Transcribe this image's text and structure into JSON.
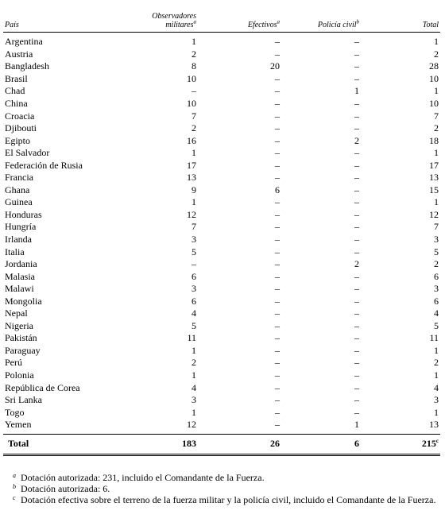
{
  "headers": {
    "country": "País",
    "observers": "Observadores militares",
    "observers_note": "a",
    "troops": "Efectivos",
    "troops_note": "a",
    "police": "Policía civil",
    "police_note": "b",
    "total": "Total"
  },
  "rows": [
    {
      "country": "Argentina",
      "observers": "1",
      "troops": "–",
      "police": "–",
      "total": "1"
    },
    {
      "country": "Austria",
      "observers": "2",
      "troops": "–",
      "police": "–",
      "total": "2"
    },
    {
      "country": "Bangladesh",
      "observers": "8",
      "troops": "20",
      "police": "–",
      "total": "28"
    },
    {
      "country": "Brasil",
      "observers": "10",
      "troops": "–",
      "police": "–",
      "total": "10"
    },
    {
      "country": "Chad",
      "observers": "–",
      "troops": "–",
      "police": "1",
      "total": "1"
    },
    {
      "country": "China",
      "observers": "10",
      "troops": "–",
      "police": "–",
      "total": "10"
    },
    {
      "country": "Croacia",
      "observers": "7",
      "troops": "–",
      "police": "–",
      "total": "7"
    },
    {
      "country": "Djibouti",
      "observers": "2",
      "troops": "–",
      "police": "–",
      "total": "2"
    },
    {
      "country": "Egipto",
      "observers": "16",
      "troops": "–",
      "police": "2",
      "total": "18"
    },
    {
      "country": "El Salvador",
      "observers": "1",
      "troops": "–",
      "police": "–",
      "total": "1"
    },
    {
      "country": "Federación de Rusia",
      "observers": "17",
      "troops": "–",
      "police": "–",
      "total": "17"
    },
    {
      "country": "Francia",
      "observers": "13",
      "troops": "–",
      "police": "–",
      "total": "13"
    },
    {
      "country": "Ghana",
      "observers": "9",
      "troops": "6",
      "police": "–",
      "total": "15"
    },
    {
      "country": "Guinea",
      "observers": "1",
      "troops": "–",
      "police": "–",
      "total": "1"
    },
    {
      "country": "Honduras",
      "observers": "12",
      "troops": "–",
      "police": "–",
      "total": "12"
    },
    {
      "country": "Hungría",
      "observers": "7",
      "troops": "–",
      "police": "–",
      "total": "7"
    },
    {
      "country": "Irlanda",
      "observers": "3",
      "troops": "–",
      "police": "–",
      "total": "3"
    },
    {
      "country": "Italia",
      "observers": "5",
      "troops": "–",
      "police": "–",
      "total": "5"
    },
    {
      "country": "Jordania",
      "observers": "–",
      "troops": "–",
      "police": "2",
      "total": "2"
    },
    {
      "country": "Malasia",
      "observers": "6",
      "troops": "–",
      "police": "–",
      "total": "6"
    },
    {
      "country": "Malawi",
      "observers": "3",
      "troops": "–",
      "police": "–",
      "total": "3"
    },
    {
      "country": "Mongolia",
      "observers": "6",
      "troops": "–",
      "police": "–",
      "total": "6"
    },
    {
      "country": "Nepal",
      "observers": "4",
      "troops": "–",
      "police": "–",
      "total": "4"
    },
    {
      "country": "Nigeria",
      "observers": "5",
      "troops": "–",
      "police": "–",
      "total": "5"
    },
    {
      "country": "Pakistán",
      "observers": "11",
      "troops": "–",
      "police": "–",
      "total": "11"
    },
    {
      "country": "Paraguay",
      "observers": "1",
      "troops": "–",
      "police": "–",
      "total": "1"
    },
    {
      "country": "Perú",
      "observers": "2",
      "troops": "–",
      "police": "–",
      "total": "2"
    },
    {
      "country": "Polonia",
      "observers": "1",
      "troops": "–",
      "police": "–",
      "total": "1"
    },
    {
      "country": "República de Corea",
      "observers": "4",
      "troops": "–",
      "police": "–",
      "total": "4"
    },
    {
      "country": "Sri Lanka",
      "observers": "3",
      "troops": "–",
      "police": "–",
      "total": "3"
    },
    {
      "country": "Togo",
      "observers": "1",
      "troops": "–",
      "police": "–",
      "total": "1"
    },
    {
      "country": "Yemen",
      "observers": "12",
      "troops": "–",
      "police": "1",
      "total": "13"
    }
  ],
  "totals": {
    "label": "Total",
    "observers": "183",
    "troops": "26",
    "police": "6",
    "total": "215",
    "total_note": "c"
  },
  "footnotes": [
    {
      "mark": "a",
      "text": "Dotación autorizada: 231, incluido el Comandante de la Fuerza."
    },
    {
      "mark": "b",
      "text": "Dotación autorizada: 6."
    },
    {
      "mark": "c",
      "text": "Dotación efectiva sobre el terreno de la fuerza militar y la policía civil, incluido el Comandante de la Fuerza."
    }
  ]
}
